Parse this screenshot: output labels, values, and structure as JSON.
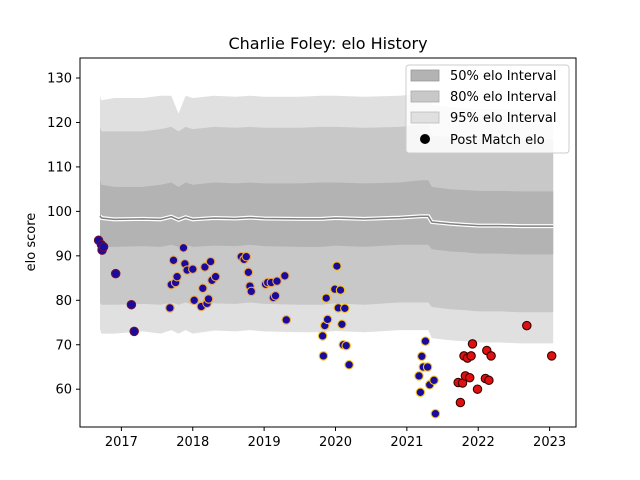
{
  "chart_data": {
    "type": "scatter",
    "title": "Charlie Foley: elo History",
    "xlabel": "",
    "ylabel": "elo score",
    "xlim": [
      2016.42,
      2023.37
    ],
    "ylim": [
      51.5,
      134.5
    ],
    "x_ticks": [
      "2017",
      "2018",
      "2019",
      "2020",
      "2021",
      "2022",
      "2023"
    ],
    "y_ticks": [
      "60",
      "70",
      "80",
      "90",
      "100",
      "110",
      "120",
      "130"
    ],
    "grid": false,
    "legend_position": "top-right",
    "legend": [
      {
        "label": "50% elo Interval",
        "color": "#b3b3b3",
        "kind": "patch"
      },
      {
        "label": "80% elo Interval",
        "color": "#c8c8c8",
        "kind": "patch"
      },
      {
        "label": "95% elo Interval",
        "color": "#e0e0e0",
        "kind": "patch"
      },
      {
        "label": "Post Match elo",
        "color": "#000000",
        "kind": "marker"
      }
    ],
    "interval_x": [
      2016.7,
      2016.72,
      2016.9,
      2017.3,
      2017.55,
      2017.7,
      2017.8,
      2017.9,
      2018.0,
      2018.3,
      2018.6,
      2018.8,
      2019.0,
      2019.5,
      2019.8,
      2020.0,
      2020.4,
      2020.9,
      2021.2,
      2021.3,
      2021.35,
      2021.6,
      2021.8,
      2022.0,
      2022.3,
      2022.6,
      2023.05
    ],
    "mean": [
      99,
      98.5,
      98.2,
      98.3,
      98.2,
      98.8,
      98.1,
      98.7,
      98.2,
      98.5,
      98.4,
      98.6,
      98.4,
      98.3,
      98.3,
      98.5,
      98.3,
      98.6,
      98.9,
      98.9,
      97.6,
      97.2,
      97.0,
      96.8,
      96.8,
      96.7,
      96.7
    ],
    "band_50": [
      [
        92.5,
        107
      ],
      [
        92,
        106
      ],
      [
        92,
        105.5
      ],
      [
        92.2,
        105.5
      ],
      [
        92,
        106
      ],
      [
        92.5,
        106.5
      ],
      [
        92,
        105.5
      ],
      [
        92.5,
        106.5
      ],
      [
        92,
        106
      ],
      [
        92.3,
        106.5
      ],
      [
        92.2,
        106.3
      ],
      [
        92.5,
        106.5
      ],
      [
        92.2,
        106.3
      ],
      [
        92,
        106.3
      ],
      [
        92,
        106.5
      ],
      [
        92.3,
        106.5
      ],
      [
        92,
        106.3
      ],
      [
        92.5,
        106.5
      ],
      [
        92.5,
        107
      ],
      [
        92.5,
        107
      ],
      [
        91.5,
        105.5
      ],
      [
        91,
        105
      ],
      [
        90.8,
        104.8
      ],
      [
        90.5,
        104.6
      ],
      [
        90.5,
        104.6
      ],
      [
        90.3,
        104.5
      ],
      [
        90.3,
        104.5
      ]
    ],
    "band_80": [
      [
        79.5,
        119
      ],
      [
        79,
        118
      ],
      [
        79,
        118
      ],
      [
        79.2,
        118
      ],
      [
        79,
        118.5
      ],
      [
        79.5,
        119
      ],
      [
        79,
        118
      ],
      [
        79.5,
        119
      ],
      [
        79,
        118.5
      ],
      [
        79.3,
        119
      ],
      [
        79.2,
        118.8
      ],
      [
        79.5,
        119
      ],
      [
        79.2,
        118.8
      ],
      [
        79,
        118.8
      ],
      [
        79,
        119
      ],
      [
        79.3,
        119
      ],
      [
        79,
        118.8
      ],
      [
        79.5,
        119
      ],
      [
        79.5,
        119.5
      ],
      [
        79.5,
        119.5
      ],
      [
        78.5,
        117
      ],
      [
        78,
        116.8
      ],
      [
        77.8,
        116.5
      ],
      [
        77.5,
        116.3
      ],
      [
        77.5,
        116.3
      ],
      [
        77.3,
        116.2
      ],
      [
        77.3,
        116.2
      ]
    ],
    "band_95": [
      [
        73.5,
        126
      ],
      [
        72.5,
        125
      ],
      [
        72.5,
        125.5
      ],
      [
        73,
        125.5
      ],
      [
        72.5,
        126
      ],
      [
        73.3,
        126
      ],
      [
        72.5,
        122
      ],
      [
        73.3,
        126
      ],
      [
        72.5,
        125.5
      ],
      [
        73.2,
        126
      ],
      [
        73,
        125.8
      ],
      [
        73.3,
        126
      ],
      [
        73,
        125.8
      ],
      [
        72.8,
        125.8
      ],
      [
        72.8,
        126
      ],
      [
        73.1,
        126
      ],
      [
        72.8,
        125.8
      ],
      [
        73.3,
        126
      ],
      [
        73.3,
        126.5
      ],
      [
        73.3,
        126.5
      ],
      [
        71.5,
        124
      ],
      [
        71,
        123.5
      ],
      [
        70.8,
        123.2
      ],
      [
        70.5,
        123
      ],
      [
        70.5,
        123
      ],
      [
        70.3,
        122.8
      ],
      [
        70.3,
        122.8
      ]
    ],
    "points": [
      {
        "x": 2016.68,
        "y": 93.5,
        "fill": "#1a0a9e",
        "edge": "#6b0d3a"
      },
      {
        "x": 2016.72,
        "y": 92.5,
        "fill": "#1a0a9e",
        "edge": "#6b0d3a"
      },
      {
        "x": 2016.73,
        "y": 91.3,
        "fill": "#1a0a9e",
        "edge": "#6b0d3a"
      },
      {
        "x": 2016.75,
        "y": 92.0,
        "fill": "#1a0a9e",
        "edge": "#6b0d3a"
      },
      {
        "x": 2016.92,
        "y": 86.0,
        "fill": "#1a0a9e",
        "edge": "#6b0d3a"
      },
      {
        "x": 2017.14,
        "y": 79.0,
        "fill": "#1a0a9e",
        "edge": "#6b0d3a"
      },
      {
        "x": 2017.18,
        "y": 73.0,
        "fill": "#1a0a9e",
        "edge": "#6b0d3a"
      },
      {
        "x": 2017.68,
        "y": 78.3,
        "fill": "#1a0a9e",
        "edge": "#e8a64a"
      },
      {
        "x": 2017.7,
        "y": 83.5,
        "fill": "#1a0a9e",
        "edge": "#e8a64a"
      },
      {
        "x": 2017.73,
        "y": 89.0,
        "fill": "#1a0a9e",
        "edge": "#e8a64a"
      },
      {
        "x": 2017.76,
        "y": 84.0,
        "fill": "#1a0a9e",
        "edge": "#e8a64a"
      },
      {
        "x": 2017.78,
        "y": 85.3,
        "fill": "#1a0a9e",
        "edge": "#e8a64a"
      },
      {
        "x": 2017.87,
        "y": 91.8,
        "fill": "#1a0a9e",
        "edge": "#e8a64a"
      },
      {
        "x": 2017.89,
        "y": 88.2,
        "fill": "#1a0a9e",
        "edge": "#e8a64a"
      },
      {
        "x": 2017.92,
        "y": 86.8,
        "fill": "#1a0a9e",
        "edge": "#e8a64a"
      },
      {
        "x": 2018.0,
        "y": 87.0,
        "fill": "#1a0a9e",
        "edge": "#e8a64a"
      },
      {
        "x": 2018.02,
        "y": 80.0,
        "fill": "#1a0a9e",
        "edge": "#e8a64a"
      },
      {
        "x": 2018.12,
        "y": 78.6,
        "fill": "#1a0a9e",
        "edge": "#e8a64a"
      },
      {
        "x": 2018.14,
        "y": 82.7,
        "fill": "#1a0a9e",
        "edge": "#e8a64a"
      },
      {
        "x": 2018.17,
        "y": 87.5,
        "fill": "#1a0a9e",
        "edge": "#e8a64a"
      },
      {
        "x": 2018.2,
        "y": 79.3,
        "fill": "#1a0a9e",
        "edge": "#e8a64a"
      },
      {
        "x": 2018.22,
        "y": 80.3,
        "fill": "#1a0a9e",
        "edge": "#e8a64a"
      },
      {
        "x": 2018.25,
        "y": 88.7,
        "fill": "#1a0a9e",
        "edge": "#e8a64a"
      },
      {
        "x": 2018.27,
        "y": 84.5,
        "fill": "#1a0a9e",
        "edge": "#e8a64a"
      },
      {
        "x": 2018.32,
        "y": 85.3,
        "fill": "#1a0a9e",
        "edge": "#e8a64a"
      },
      {
        "x": 2018.68,
        "y": 89.8,
        "fill": "#1a0a9e",
        "edge": "#e8a64a"
      },
      {
        "x": 2018.72,
        "y": 89.2,
        "fill": "#1a0a9e",
        "edge": "#e8a64a"
      },
      {
        "x": 2018.75,
        "y": 89.8,
        "fill": "#1a0a9e",
        "edge": "#e8a64a"
      },
      {
        "x": 2018.78,
        "y": 86.3,
        "fill": "#1a0a9e",
        "edge": "#e8a64a"
      },
      {
        "x": 2018.8,
        "y": 83.2,
        "fill": "#1a0a9e",
        "edge": "#e8a64a"
      },
      {
        "x": 2018.82,
        "y": 82.0,
        "fill": "#1a0a9e",
        "edge": "#e8a64a"
      },
      {
        "x": 2019.02,
        "y": 83.6,
        "fill": "#1a0a9e",
        "edge": "#e8a64a"
      },
      {
        "x": 2019.05,
        "y": 84.0,
        "fill": "#1a0a9e",
        "edge": "#e8a64a"
      },
      {
        "x": 2019.1,
        "y": 84.0,
        "fill": "#1a0a9e",
        "edge": "#e8a64a"
      },
      {
        "x": 2019.13,
        "y": 80.6,
        "fill": "#1a0a9e",
        "edge": "#e8a64a"
      },
      {
        "x": 2019.16,
        "y": 81.0,
        "fill": "#1a0a9e",
        "edge": "#e8a64a"
      },
      {
        "x": 2019.18,
        "y": 84.3,
        "fill": "#1a0a9e",
        "edge": "#e8a64a"
      },
      {
        "x": 2019.29,
        "y": 85.5,
        "fill": "#1a0a9e",
        "edge": "#e8a64a"
      },
      {
        "x": 2019.31,
        "y": 75.6,
        "fill": "#1a0a9e",
        "edge": "#e8a64a"
      },
      {
        "x": 2019.82,
        "y": 72.0,
        "fill": "#1a0a9e",
        "edge": "#f2c21a"
      },
      {
        "x": 2019.83,
        "y": 67.5,
        "fill": "#1a0a9e",
        "edge": "#f2c21a"
      },
      {
        "x": 2019.85,
        "y": 74.3,
        "fill": "#1a0a9e",
        "edge": "#f2c21a"
      },
      {
        "x": 2019.87,
        "y": 80.5,
        "fill": "#1a0a9e",
        "edge": "#f2c21a"
      },
      {
        "x": 2019.89,
        "y": 75.7,
        "fill": "#1a0a9e",
        "edge": "#f2c21a"
      },
      {
        "x": 2019.99,
        "y": 82.5,
        "fill": "#1a0a9e",
        "edge": "#f2c21a"
      },
      {
        "x": 2020.02,
        "y": 87.7,
        "fill": "#1a0a9e",
        "edge": "#f2c21a"
      },
      {
        "x": 2020.04,
        "y": 78.3,
        "fill": "#1a0a9e",
        "edge": "#f2c21a"
      },
      {
        "x": 2020.07,
        "y": 82.3,
        "fill": "#1a0a9e",
        "edge": "#f2c21a"
      },
      {
        "x": 2020.09,
        "y": 74.6,
        "fill": "#1a0a9e",
        "edge": "#f2c21a"
      },
      {
        "x": 2020.11,
        "y": 70.0,
        "fill": "#1a0a9e",
        "edge": "#f2c21a"
      },
      {
        "x": 2020.13,
        "y": 78.2,
        "fill": "#1a0a9e",
        "edge": "#f2c21a"
      },
      {
        "x": 2020.15,
        "y": 69.8,
        "fill": "#1a0a9e",
        "edge": "#f2c21a"
      },
      {
        "x": 2020.19,
        "y": 65.5,
        "fill": "#1a0a9e",
        "edge": "#f2c21a"
      },
      {
        "x": 2021.17,
        "y": 63.0,
        "fill": "#1a0a9e",
        "edge": "#f2c21a"
      },
      {
        "x": 2021.19,
        "y": 59.3,
        "fill": "#1a0a9e",
        "edge": "#f2c21a"
      },
      {
        "x": 2021.21,
        "y": 67.4,
        "fill": "#1a0a9e",
        "edge": "#f2c21a"
      },
      {
        "x": 2021.23,
        "y": 65.0,
        "fill": "#1a0a9e",
        "edge": "#f2c21a"
      },
      {
        "x": 2021.26,
        "y": 70.8,
        "fill": "#1a0a9e",
        "edge": "#f2c21a"
      },
      {
        "x": 2021.29,
        "y": 65.0,
        "fill": "#1a0a9e",
        "edge": "#f2c21a"
      },
      {
        "x": 2021.32,
        "y": 61.0,
        "fill": "#1a0a9e",
        "edge": "#f2c21a"
      },
      {
        "x": 2021.38,
        "y": 62.0,
        "fill": "#1a0a9e",
        "edge": "#f2c21a"
      },
      {
        "x": 2021.4,
        "y": 54.5,
        "fill": "#1a0a9e",
        "edge": "#f2c21a"
      },
      {
        "x": 2021.72,
        "y": 61.5,
        "fill": "#dd1111",
        "edge": "#3a0000"
      },
      {
        "x": 2021.75,
        "y": 57.0,
        "fill": "#dd1111",
        "edge": "#3a0000"
      },
      {
        "x": 2021.78,
        "y": 61.4,
        "fill": "#dd1111",
        "edge": "#3a0000"
      },
      {
        "x": 2021.8,
        "y": 67.5,
        "fill": "#dd1111",
        "edge": "#3a0000"
      },
      {
        "x": 2021.82,
        "y": 63.0,
        "fill": "#dd1111",
        "edge": "#3a0000"
      },
      {
        "x": 2021.85,
        "y": 67.0,
        "fill": "#dd1111",
        "edge": "#3a0000"
      },
      {
        "x": 2021.88,
        "y": 62.6,
        "fill": "#dd1111",
        "edge": "#3a0000"
      },
      {
        "x": 2021.9,
        "y": 67.5,
        "fill": "#dd1111",
        "edge": "#3a0000"
      },
      {
        "x": 2021.92,
        "y": 70.2,
        "fill": "#dd1111",
        "edge": "#3a0000"
      },
      {
        "x": 2021.99,
        "y": 60.0,
        "fill": "#dd1111",
        "edge": "#3a0000"
      },
      {
        "x": 2022.1,
        "y": 62.4,
        "fill": "#dd1111",
        "edge": "#3a0000"
      },
      {
        "x": 2022.12,
        "y": 68.7,
        "fill": "#dd1111",
        "edge": "#3a0000"
      },
      {
        "x": 2022.15,
        "y": 62.0,
        "fill": "#dd1111",
        "edge": "#3a0000"
      },
      {
        "x": 2022.18,
        "y": 67.5,
        "fill": "#dd1111",
        "edge": "#3a0000"
      },
      {
        "x": 2022.68,
        "y": 74.3,
        "fill": "#dd1111",
        "edge": "#3a0000"
      },
      {
        "x": 2023.03,
        "y": 67.5,
        "fill": "#dd1111",
        "edge": "#3a0000"
      }
    ]
  }
}
